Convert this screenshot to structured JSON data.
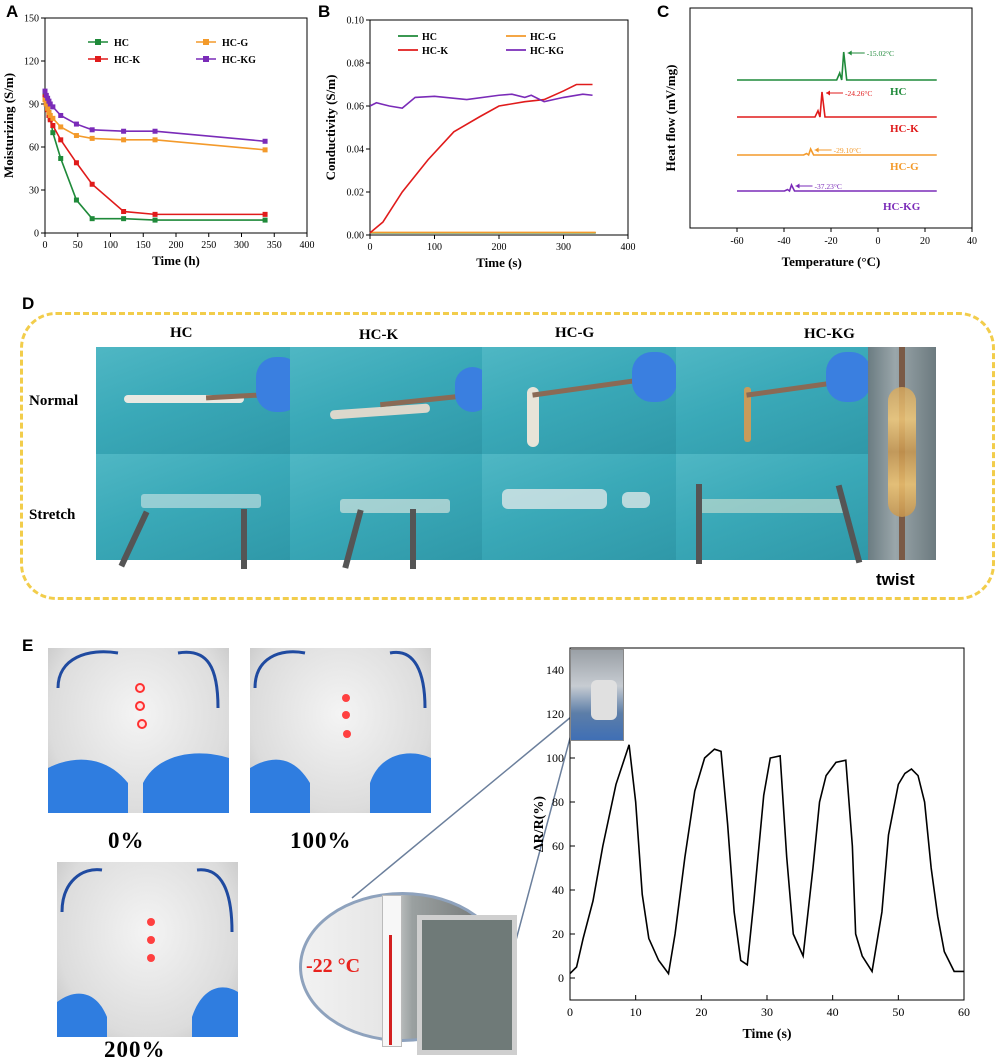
{
  "panel_letters": [
    "A",
    "B",
    "C",
    "D",
    "E"
  ],
  "colors": {
    "HC": "#1f8a3a",
    "HC-K": "#e01b1b",
    "HC-G": "#f39a2b",
    "HC-KG": "#7a2bb8"
  },
  "chart_data": [
    {
      "id": "A",
      "type": "line",
      "xlabel": "Time (h)",
      "ylabel": "Moisturizing (S/m)",
      "xlim": [
        0,
        400
      ],
      "ylim": [
        0,
        150
      ],
      "xticks": [
        0,
        50,
        100,
        150,
        200,
        250,
        300,
        350,
        400
      ],
      "yticks": [
        0,
        30,
        60,
        90,
        120,
        150
      ],
      "legend": [
        "HC",
        "HC-G",
        "HC-K",
        "HC-KG"
      ],
      "series": [
        {
          "name": "HC",
          "x": [
            0,
            2,
            4,
            6,
            8,
            12,
            24,
            48,
            72,
            120,
            168,
            336
          ],
          "y": [
            97,
            92,
            88,
            84,
            80,
            70,
            52,
            23,
            10,
            10,
            9,
            9
          ]
        },
        {
          "name": "HC-K",
          "x": [
            0,
            2,
            4,
            6,
            8,
            12,
            24,
            48,
            72,
            120,
            168,
            336
          ],
          "y": [
            95,
            90,
            86,
            82,
            79,
            75,
            65,
            49,
            34,
            15,
            13,
            13
          ]
        },
        {
          "name": "HC-G",
          "x": [
            0,
            2,
            4,
            6,
            8,
            12,
            24,
            48,
            72,
            120,
            168,
            336
          ],
          "y": [
            93,
            90,
            87,
            84,
            82,
            80,
            74,
            68,
            66,
            65,
            65,
            58
          ]
        },
        {
          "name": "HC-KG",
          "x": [
            0,
            2,
            4,
            6,
            8,
            12,
            24,
            48,
            72,
            120,
            168,
            336
          ],
          "y": [
            99,
            96,
            94,
            92,
            90,
            88,
            82,
            76,
            72,
            71,
            71,
            64
          ]
        }
      ]
    },
    {
      "id": "B",
      "type": "line",
      "xlabel": "Time (s)",
      "ylabel": "Conductivity (S/m)",
      "xlim": [
        0,
        400
      ],
      "ylim": [
        0,
        0.1
      ],
      "xticks": [
        0,
        100,
        200,
        300,
        400
      ],
      "yticks": [
        "0.00",
        "0.02",
        "0.04",
        "0.06",
        "0.08",
        "0.10"
      ],
      "legend": [
        "HC",
        "HC-G",
        "HC-K",
        "HC-KG"
      ],
      "series": [
        {
          "name": "HC",
          "x": [
            0,
            350
          ],
          "y": [
            0.001,
            0.001
          ]
        },
        {
          "name": "HC-G",
          "x": [
            0,
            350
          ],
          "y": [
            0.0012,
            0.0012
          ]
        },
        {
          "name": "HC-K",
          "x": [
            0,
            20,
            50,
            90,
            130,
            170,
            200,
            240,
            270,
            300,
            320,
            345
          ],
          "y": [
            0.001,
            0.006,
            0.02,
            0.035,
            0.048,
            0.055,
            0.06,
            0.062,
            0.063,
            0.067,
            0.07,
            0.07
          ]
        },
        {
          "name": "HC-KG",
          "x": [
            0,
            10,
            30,
            50,
            70,
            100,
            150,
            200,
            220,
            240,
            250,
            270,
            300,
            330,
            345
          ],
          "y": [
            0.06,
            0.0615,
            0.06,
            0.059,
            0.064,
            0.0645,
            0.063,
            0.065,
            0.0655,
            0.064,
            0.065,
            0.062,
            0.064,
            0.0655,
            0.065
          ]
        }
      ]
    },
    {
      "id": "C",
      "type": "line",
      "xlabel": "Temperature (°C)",
      "ylabel": "Heat flow (mV/mg)",
      "xlim": [
        -80,
        40
      ],
      "xticks": [
        -60,
        -40,
        -20,
        0,
        20,
        40
      ],
      "series": [
        {
          "name": "HC",
          "label": "HC",
          "peak": -15.02,
          "annotation": "-15.02°C"
        },
        {
          "name": "HC-K",
          "label": "HC-K",
          "peak": -24.26,
          "annotation": "-24.26°C"
        },
        {
          "name": "HC-G",
          "label": "HC-G",
          "peak": -29.1,
          "annotation": "-29.10°C"
        },
        {
          "name": "HC-KG",
          "label": "HC-KG",
          "peak": -37.23,
          "annotation": "-37.23°C"
        }
      ]
    },
    {
      "id": "E",
      "type": "line",
      "xlabel": "Time (s)",
      "ylabel": "∆R/R(%)",
      "xlim": [
        0,
        60
      ],
      "ylim": [
        -10,
        150
      ],
      "xticks": [
        0,
        10,
        20,
        30,
        40,
        50,
        60
      ],
      "yticks": [
        0,
        20,
        40,
        60,
        80,
        100,
        120,
        140
      ],
      "series": [
        {
          "name": "∆R/R",
          "x": [
            0,
            1,
            2,
            3.5,
            5,
            7,
            9,
            10,
            11,
            12,
            13.5,
            15,
            16,
            17.5,
            19,
            20.5,
            22,
            23,
            24,
            25,
            26,
            27,
            28,
            29.5,
            30.5,
            32,
            33,
            34,
            35.5,
            37,
            38,
            39,
            40.5,
            42,
            43,
            43.5,
            44.5,
            46,
            47.5,
            48.5,
            50,
            51,
            52,
            53,
            54,
            55,
            56,
            57,
            58.5,
            60
          ],
          "y": [
            2,
            5,
            18,
            35,
            60,
            88,
            106,
            80,
            38,
            18,
            8,
            2,
            20,
            55,
            85,
            100,
            104,
            103,
            70,
            30,
            8,
            6,
            35,
            83,
            100,
            101,
            55,
            20,
            10,
            50,
            80,
            92,
            98,
            99,
            60,
            20,
            10,
            3,
            30,
            65,
            88,
            93,
            95,
            92,
            80,
            50,
            28,
            12,
            3,
            3
          ]
        }
      ]
    }
  ],
  "panel_D": {
    "columns": [
      "HC",
      "HC-K",
      "HC-G",
      "HC-KG"
    ],
    "rows": [
      "Normal",
      "Stretch"
    ],
    "twist_label": "twist"
  },
  "panel_E": {
    "strain_labels": [
      "0%",
      "100%",
      "200%"
    ],
    "thermometer_label": "-22 °C"
  }
}
